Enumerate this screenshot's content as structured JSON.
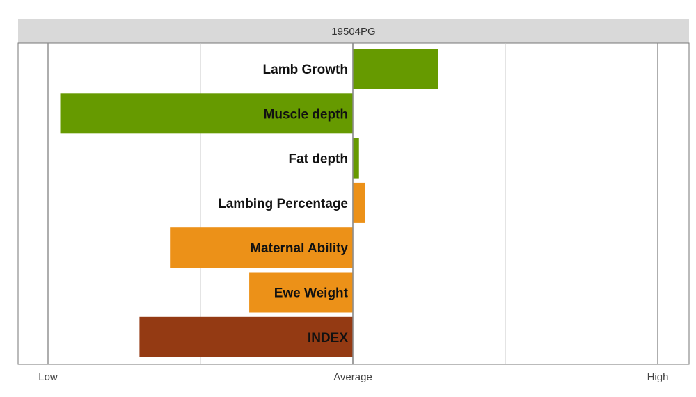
{
  "chart_data": {
    "type": "bar",
    "orientation": "horizontal",
    "title": "19504PG",
    "x_ticks": [
      "Low",
      "Average",
      "High"
    ],
    "xlim": [
      -1,
      1
    ],
    "grid": true,
    "categories": [
      "Lamb Growth",
      "Muscle depth",
      "Fat depth",
      "Lambing Percentage",
      "Maternal Ability",
      "Ewe Weight",
      "INDEX"
    ],
    "values": [
      0.28,
      -0.96,
      0.02,
      0.04,
      -0.6,
      -0.34,
      -0.7
    ],
    "colors": [
      "#669a00",
      "#669a00",
      "#669a00",
      "#ec9118",
      "#ec9118",
      "#ec9118",
      "#943a13"
    ]
  }
}
